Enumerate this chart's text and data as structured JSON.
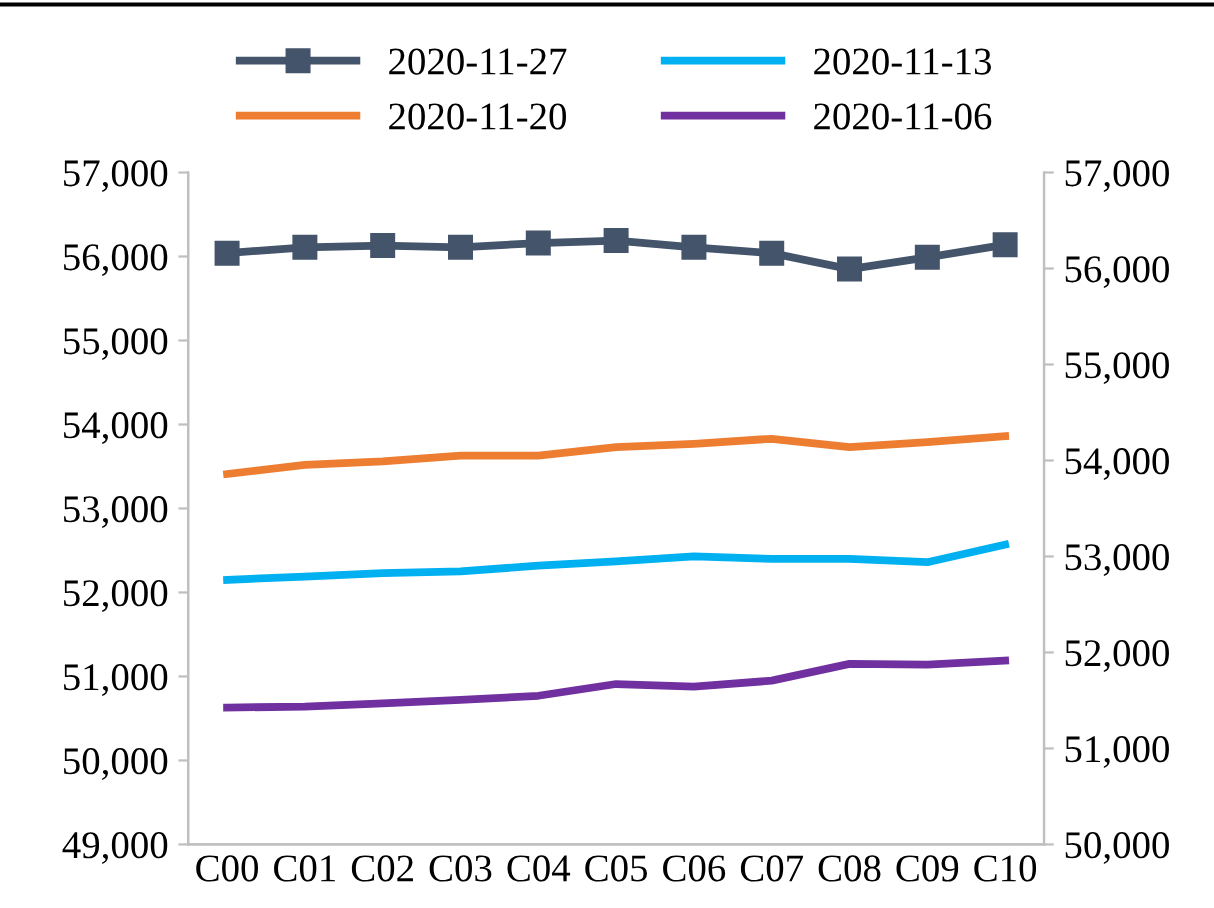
{
  "chart_data": {
    "type": "line",
    "categories": [
      "C00",
      "C01",
      "C02",
      "C03",
      "C04",
      "C05",
      "C06",
      "C07",
      "C08",
      "C09",
      "C10"
    ],
    "series": [
      {
        "name": "2020-11-27",
        "color": "#44546a",
        "marker": "square",
        "values": [
          56040,
          56110,
          56130,
          56110,
          56160,
          56190,
          56110,
          56040,
          55850,
          55990,
          56140
        ]
      },
      {
        "name": "2020-11-20",
        "color": "#ed7d31",
        "values": [
          53410,
          53520,
          53560,
          53630,
          53630,
          53730,
          53770,
          53830,
          53730,
          53790,
          53860
        ]
      },
      {
        "name": "2020-11-13",
        "color": "#00b0f0",
        "values": [
          52150,
          52190,
          52230,
          52250,
          52320,
          52370,
          52430,
          52400,
          52400,
          52360,
          52570
        ]
      },
      {
        "name": "2020-11-06",
        "color": "#7030a0",
        "values": [
          50630,
          50640,
          50680,
          50720,
          50770,
          50910,
          50880,
          50950,
          51150,
          51140,
          51190
        ]
      }
    ],
    "ylim": [
      49000,
      57000
    ],
    "yticks": [
      {
        "value": 49000,
        "label": "49,000"
      },
      {
        "value": 50000,
        "label": "50,000"
      },
      {
        "value": 51000,
        "label": "51,000"
      },
      {
        "value": 52000,
        "label": "52,000"
      },
      {
        "value": 53000,
        "label": "53,000"
      },
      {
        "value": 54000,
        "label": "54,000"
      },
      {
        "value": 55000,
        "label": "55,000"
      },
      {
        "value": 56000,
        "label": "56,000"
      },
      {
        "value": 57000,
        "label": "57,000"
      }
    ],
    "y2lim": [
      50000,
      57000
    ],
    "y2ticks": [
      {
        "value": 50000,
        "label": "50,000"
      },
      {
        "value": 51000,
        "label": "51,000"
      },
      {
        "value": 52000,
        "label": "52,000"
      },
      {
        "value": 53000,
        "label": "53,000"
      },
      {
        "value": 54000,
        "label": "54,000"
      },
      {
        "value": 55000,
        "label": "55,000"
      },
      {
        "value": 56000,
        "label": "56,000"
      },
      {
        "value": 57000,
        "label": "57,000"
      }
    ],
    "grid": false,
    "legend": "top"
  }
}
